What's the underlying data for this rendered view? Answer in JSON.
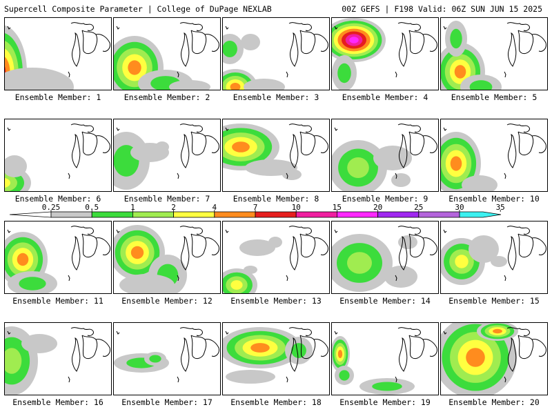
{
  "header": {
    "left": "Supercell Composite Parameter | College of DuPage NEXLAB",
    "right": "00Z GEFS | F198 Valid: 06Z SUN JUN 15 2025"
  },
  "colorbar": {
    "ticks": [
      "0.25",
      "0.5",
      "1",
      "2",
      "4",
      "7",
      "10",
      "15",
      "20",
      "25",
      "30",
      "35"
    ],
    "colors": [
      "#c8c8c8",
      "#3cdc3c",
      "#a0ec50",
      "#ffff40",
      "#ff8c1e",
      "#e61e1e",
      "#f01ea0",
      "#ff28ff",
      "#a028f0",
      "#b464dc",
      "#3cf0f0"
    ]
  },
  "panels": [
    {
      "label": "Ensemble Member: 1"
    },
    {
      "label": "Ensemble Member: 2"
    },
    {
      "label": "Ensemble Member: 3"
    },
    {
      "label": "Ensemble Member: 4"
    },
    {
      "label": "Ensemble Member: 5"
    },
    {
      "label": "Ensemble Member: 6"
    },
    {
      "label": "Ensemble Member: 7"
    },
    {
      "label": "Ensemble Member: 8"
    },
    {
      "label": "Ensemble Member: 9"
    },
    {
      "label": "Ensemble Member: 10"
    },
    {
      "label": "Ensemble Member: 11"
    },
    {
      "label": "Ensemble Member: 12"
    },
    {
      "label": "Ensemble Member: 13"
    },
    {
      "label": "Ensemble Member: 14"
    },
    {
      "label": "Ensemble Member: 15"
    },
    {
      "label": "Ensemble Member: 16"
    },
    {
      "label": "Ensemble Member: 17"
    },
    {
      "label": "Ensemble Member: 18"
    },
    {
      "label": "Ensemble Member: 19"
    },
    {
      "label": "Ensemble Member: 20"
    }
  ]
}
